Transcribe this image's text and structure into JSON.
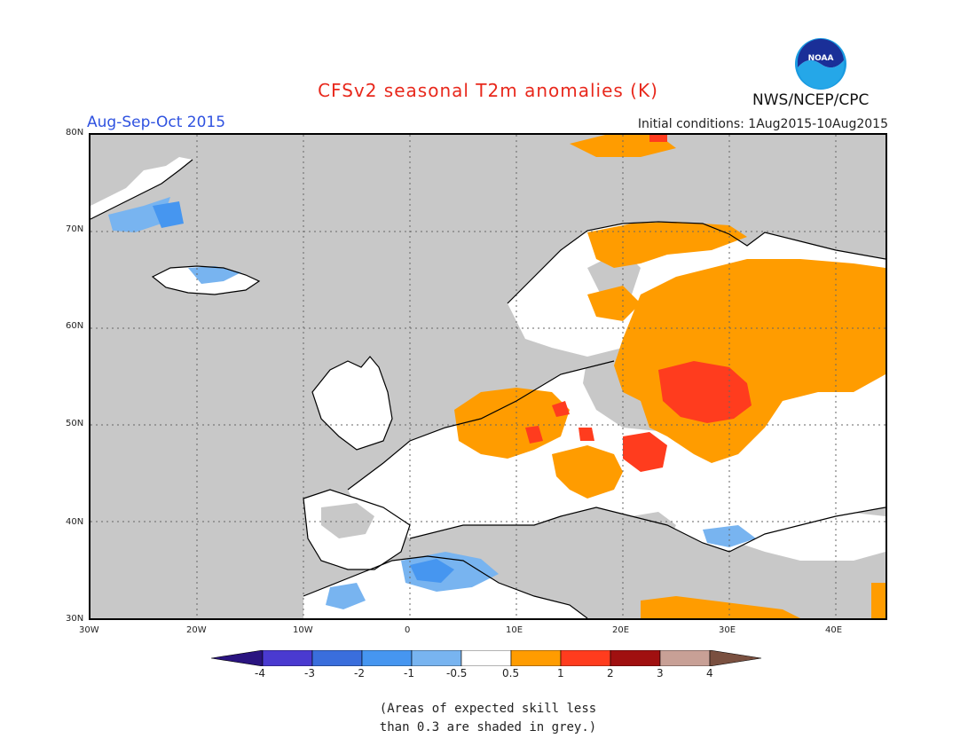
{
  "title": "CFSv2 seasonal T2m anomalies (K)",
  "season": "Aug-Sep-Oct 2015",
  "initial_conditions": "Initial conditions: 1Aug2015-10Aug2015",
  "agency": "NWS/NCEP/CPC",
  "logo_text": "NOAA",
  "map": {
    "lat_labels": [
      "80N",
      "70N",
      "60N",
      "50N",
      "40N",
      "30N"
    ],
    "lon_labels": [
      "30W",
      "20W",
      "10W",
      "0",
      "10E",
      "20E",
      "30E",
      "40E"
    ],
    "lat_range": [
      30,
      80
    ],
    "lon_range": [
      -30,
      45
    ],
    "colors": {
      "ocean_grey": "#c8c8c8",
      "near_normal": "#ffffff",
      "warm_05_1": "#ff9c00",
      "warm_1_2": "#ff3c1e",
      "cool_05_1": "#78b4f0",
      "cool_1_2": "#4696f0"
    }
  },
  "colorbar": {
    "labels": [
      "-4",
      "-3",
      "-2",
      "-1",
      "-0.5",
      "0.5",
      "1",
      "2",
      "3",
      "4"
    ],
    "colors": [
      "#3c1ea0",
      "#4a3ad0",
      "#3a6edc",
      "#4696f0",
      "#78b4f0",
      "#ffffff",
      "#ff9c00",
      "#ff3c1e",
      "#a01010",
      "#c8a096"
    ],
    "end_low": "#2a1480",
    "end_high": "#7a5040"
  },
  "note": [
    "(Areas of expected skill less",
    "than 0.3 are shaded in grey.)"
  ]
}
